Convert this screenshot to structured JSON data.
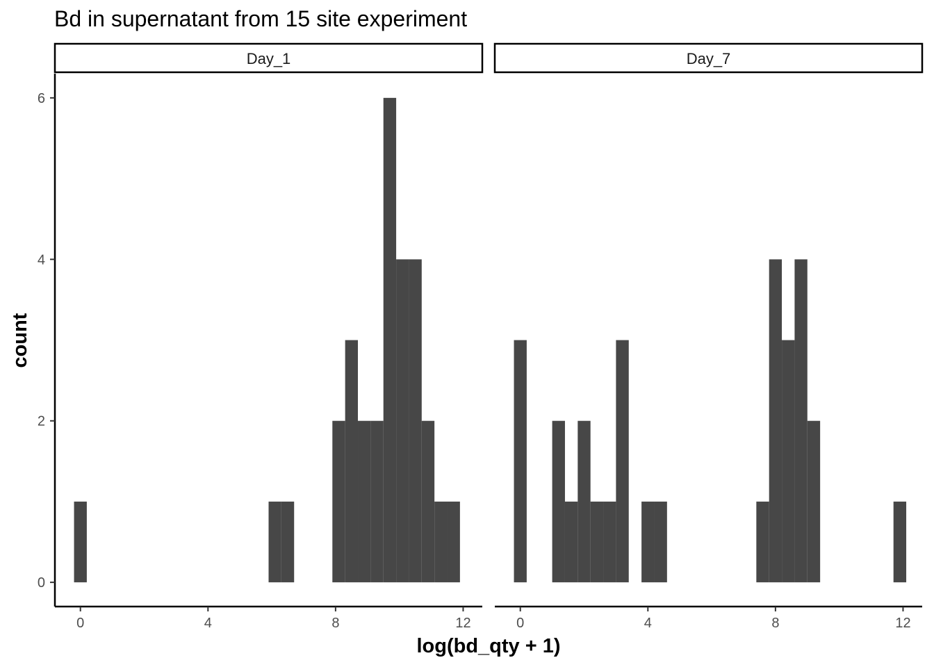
{
  "chart_data": {
    "type": "bar",
    "subtype": "histogram-facets",
    "title": "Bd in supernatant from 15 site experiment",
    "xlabel": "log(bd_qty + 1)",
    "ylabel": "count",
    "bar_color": "#474747",
    "bin_width": 0.4,
    "xlim": [
      -0.8,
      12.6
    ],
    "ylim": [
      -0.3,
      6.3
    ],
    "x_ticks": [
      0,
      4,
      8,
      12
    ],
    "y_ticks": [
      0,
      2,
      4,
      6
    ],
    "grid": false,
    "legend": "none",
    "panels": [
      {
        "strip_label": "Day_1",
        "bins": [
          {
            "x": 0.0,
            "count": 1
          },
          {
            "x": 6.1,
            "count": 1
          },
          {
            "x": 6.5,
            "count": 1
          },
          {
            "x": 8.1,
            "count": 2
          },
          {
            "x": 8.5,
            "count": 3
          },
          {
            "x": 8.9,
            "count": 2
          },
          {
            "x": 9.3,
            "count": 2
          },
          {
            "x": 9.7,
            "count": 6
          },
          {
            "x": 10.1,
            "count": 4
          },
          {
            "x": 10.5,
            "count": 4
          },
          {
            "x": 10.9,
            "count": 2
          },
          {
            "x": 11.3,
            "count": 1
          },
          {
            "x": 11.7,
            "count": 1
          }
        ]
      },
      {
        "strip_label": "Day_7",
        "bins": [
          {
            "x": 0.0,
            "count": 3
          },
          {
            "x": 1.2,
            "count": 2
          },
          {
            "x": 1.6,
            "count": 1
          },
          {
            "x": 2.0,
            "count": 2
          },
          {
            "x": 2.4,
            "count": 1
          },
          {
            "x": 2.8,
            "count": 1
          },
          {
            "x": 3.2,
            "count": 3
          },
          {
            "x": 4.0,
            "count": 1
          },
          {
            "x": 4.4,
            "count": 1
          },
          {
            "x": 7.6,
            "count": 1
          },
          {
            "x": 8.0,
            "count": 4
          },
          {
            "x": 8.4,
            "count": 3
          },
          {
            "x": 8.8,
            "count": 4
          },
          {
            "x": 9.2,
            "count": 2
          },
          {
            "x": 11.9,
            "count": 1
          }
        ]
      }
    ]
  }
}
